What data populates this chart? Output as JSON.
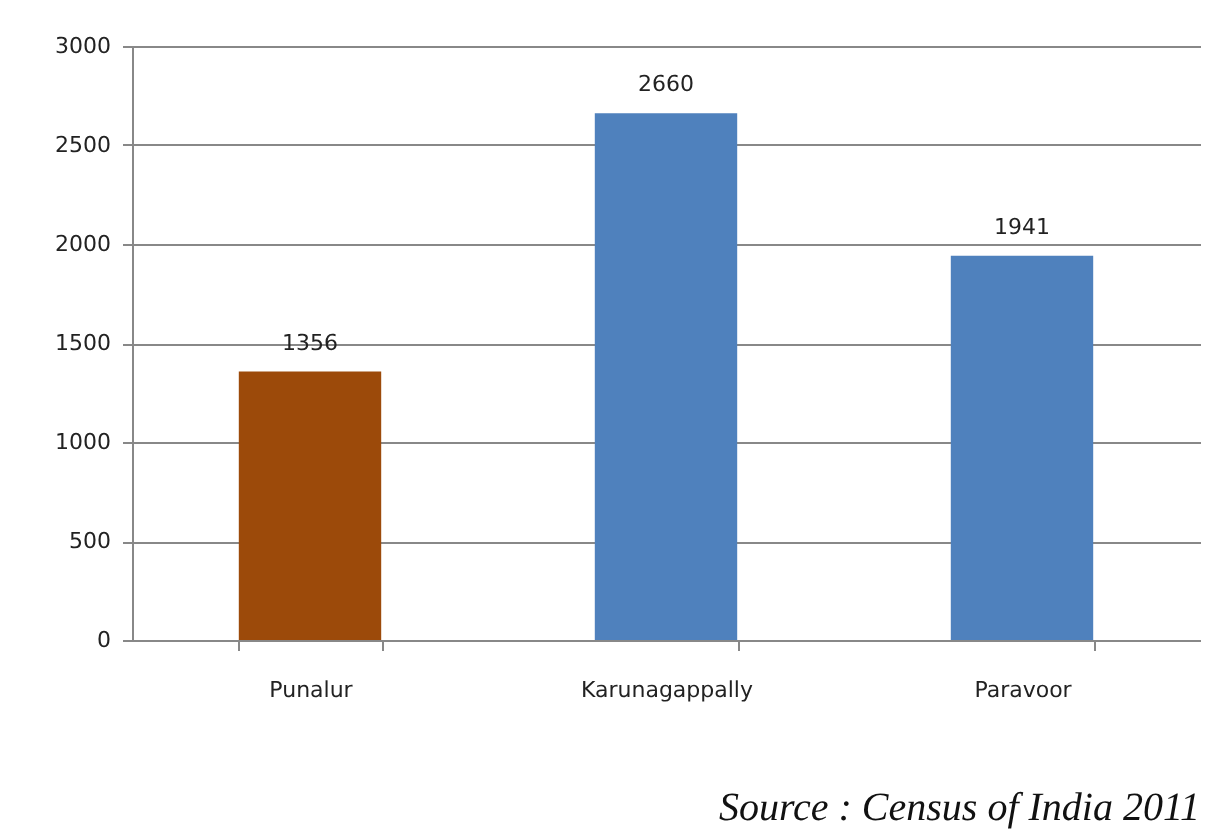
{
  "chart_data": {
    "type": "bar",
    "categories": [
      "Punalur",
      "Karunagappally",
      "Paravoor"
    ],
    "values": [
      1356,
      2660,
      1941
    ],
    "colors": [
      "#9c4a0a",
      "#4f81bd",
      "#4f81bd"
    ],
    "ylim": [
      0,
      3000
    ],
    "yticks": [
      0,
      500,
      1000,
      1500,
      2000,
      2500,
      3000
    ],
    "grid": "y",
    "data_labels": true,
    "annotations": [
      "Source :  Census of India 2011"
    ]
  }
}
